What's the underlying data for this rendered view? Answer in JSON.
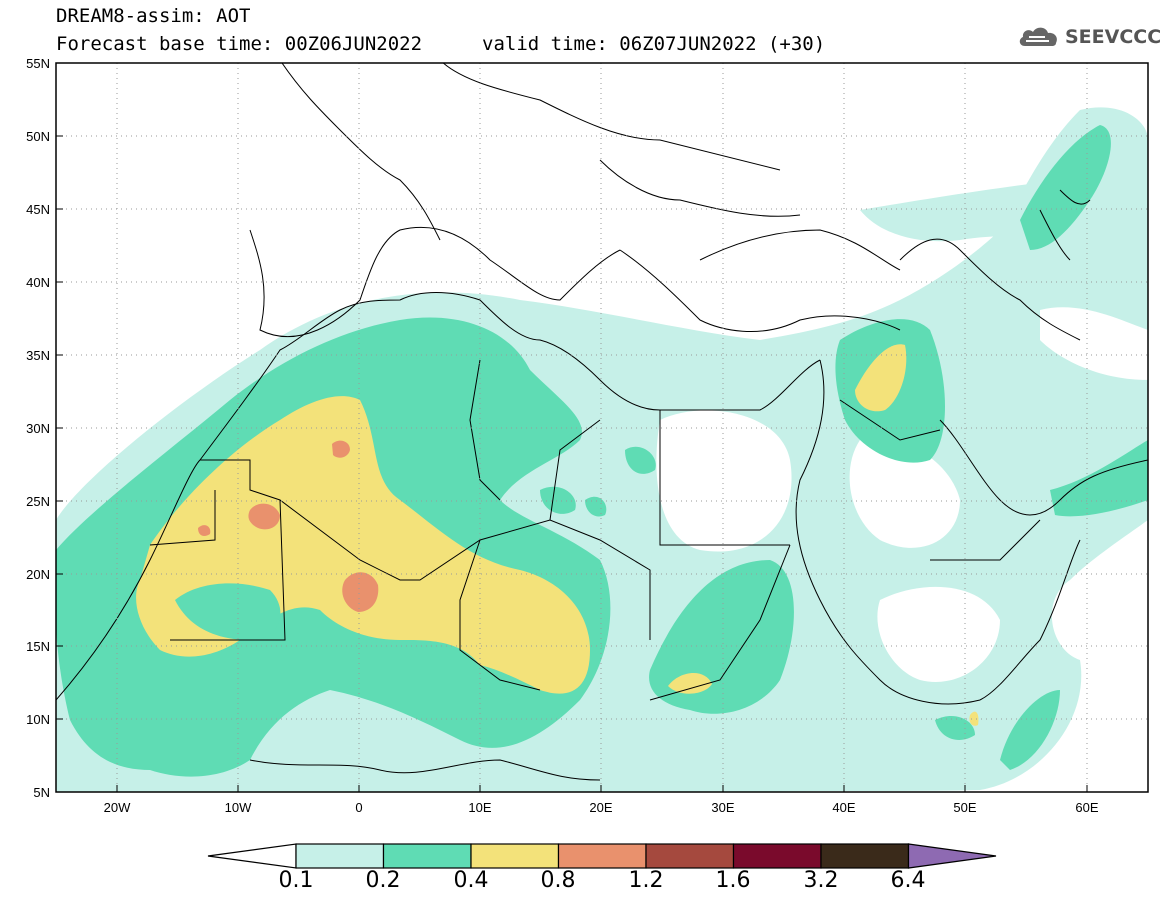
{
  "header": {
    "title": "DREAM8-assim: AOT",
    "base_time": "Forecast base time: 00Z06JUN2022",
    "valid_time": "valid time: 06Z07JUN2022 (+30)"
  },
  "logo": {
    "text": "SEEVCCC",
    "icon": "cloud-icon"
  },
  "map": {
    "lat_labels": [
      "55N",
      "50N",
      "45N",
      "40N",
      "35N",
      "30N",
      "25N",
      "20N",
      "15N",
      "10N",
      "5N"
    ],
    "lon_labels": [
      "20W",
      "10W",
      "0",
      "10E",
      "20E",
      "30E",
      "40E",
      "50E",
      "60E"
    ],
    "lon_range": [
      -25,
      65
    ],
    "lat_range": [
      5,
      55
    ],
    "variable": "AOT",
    "grid": "dotted"
  },
  "colorbar": {
    "labels": [
      "0.1",
      "0.2",
      "0.4",
      "0.8",
      "1.2",
      "1.6",
      "3.2",
      "6.4"
    ],
    "colors": [
      "#ffffff",
      "#c6f0e8",
      "#5fdcb4",
      "#f3e27a",
      "#e9916d",
      "#a5493e",
      "#7a0a2c",
      "#3a2a1a",
      "#8e6ab2"
    ]
  }
}
